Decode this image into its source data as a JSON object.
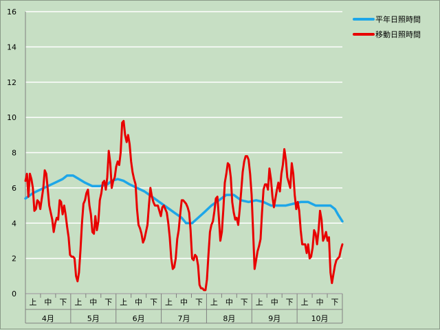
{
  "chart_data": {
    "type": "line",
    "title": "",
    "xlabel": "",
    "ylabel": "",
    "ylim": [
      0,
      16
    ],
    "yticks": [
      0,
      2,
      4,
      6,
      8,
      10,
      12,
      14,
      16
    ],
    "grid": true,
    "legend_position": "top-right",
    "months": [
      "4月",
      "5月",
      "6月",
      "7月",
      "8月",
      "9月",
      "10月"
    ],
    "decade_labels": [
      "上",
      "中",
      "下"
    ],
    "x_unit": "day index (0 = Apr 1, 213 = Oct 31)",
    "series": [
      {
        "name": "平年日照時間",
        "color": "#1ea6e8",
        "points": [
          [
            0,
            5.4
          ],
          [
            5,
            5.7
          ],
          [
            10,
            5.9
          ],
          [
            15,
            6.1
          ],
          [
            20,
            6.3
          ],
          [
            25,
            6.5
          ],
          [
            28,
            6.7
          ],
          [
            32,
            6.7
          ],
          [
            36,
            6.5
          ],
          [
            40,
            6.3
          ],
          [
            45,
            6.1
          ],
          [
            50,
            6.1
          ],
          [
            55,
            6.2
          ],
          [
            58,
            6.4
          ],
          [
            62,
            6.5
          ],
          [
            66,
            6.4
          ],
          [
            70,
            6.2
          ],
          [
            75,
            6.0
          ],
          [
            80,
            5.8
          ],
          [
            85,
            5.5
          ],
          [
            90,
            5.2
          ],
          [
            95,
            4.9
          ],
          [
            100,
            4.6
          ],
          [
            105,
            4.3
          ],
          [
            108,
            4.0
          ],
          [
            112,
            4.0
          ],
          [
            116,
            4.3
          ],
          [
            120,
            4.6
          ],
          [
            125,
            5.0
          ],
          [
            130,
            5.3
          ],
          [
            135,
            5.6
          ],
          [
            140,
            5.6
          ],
          [
            145,
            5.3
          ],
          [
            150,
            5.2
          ],
          [
            155,
            5.3
          ],
          [
            160,
            5.2
          ],
          [
            165,
            5.0
          ],
          [
            170,
            5.0
          ],
          [
            175,
            5.0
          ],
          [
            180,
            5.1
          ],
          [
            185,
            5.2
          ],
          [
            190,
            5.2
          ],
          [
            195,
            5.0
          ],
          [
            200,
            5.0
          ],
          [
            205,
            5.0
          ],
          [
            208,
            4.8
          ],
          [
            210,
            4.5
          ],
          [
            213,
            4.1
          ]
        ]
      },
      {
        "name": "移動日照時間",
        "color": "#e80000",
        "points": [
          [
            0,
            6.4
          ],
          [
            1,
            6.8
          ],
          [
            2,
            5.5
          ],
          [
            3,
            6.8
          ],
          [
            4,
            6.5
          ],
          [
            5,
            6.0
          ],
          [
            6,
            4.7
          ],
          [
            7,
            4.8
          ],
          [
            8,
            5.3
          ],
          [
            9,
            5.2
          ],
          [
            10,
            4.8
          ],
          [
            11,
            5.4
          ],
          [
            12,
            6.0
          ],
          [
            13,
            7.0
          ],
          [
            14,
            6.8
          ],
          [
            15,
            5.9
          ],
          [
            16,
            5.0
          ],
          [
            17,
            4.6
          ],
          [
            18,
            4.2
          ],
          [
            19,
            3.5
          ],
          [
            20,
            4.0
          ],
          [
            21,
            4.3
          ],
          [
            22,
            4.2
          ],
          [
            23,
            5.3
          ],
          [
            24,
            5.2
          ],
          [
            25,
            4.5
          ],
          [
            26,
            5.0
          ],
          [
            27,
            4.5
          ],
          [
            28,
            3.8
          ],
          [
            29,
            3.2
          ],
          [
            30,
            2.2
          ],
          [
            31,
            2.1
          ],
          [
            32,
            2.1
          ],
          [
            33,
            2.0
          ],
          [
            34,
            1.0
          ],
          [
            35,
            0.7
          ],
          [
            36,
            1.2
          ],
          [
            37,
            2.5
          ],
          [
            38,
            4.0
          ],
          [
            39,
            5.1
          ],
          [
            40,
            5.3
          ],
          [
            41,
            5.7
          ],
          [
            42,
            5.9
          ],
          [
            43,
            5.0
          ],
          [
            44,
            4.5
          ],
          [
            45,
            3.5
          ],
          [
            46,
            3.4
          ],
          [
            47,
            4.4
          ],
          [
            48,
            3.6
          ],
          [
            49,
            4.1
          ],
          [
            50,
            5.3
          ],
          [
            51,
            5.7
          ],
          [
            52,
            6.3
          ],
          [
            53,
            6.4
          ],
          [
            54,
            5.9
          ],
          [
            55,
            6.6
          ],
          [
            56,
            8.1
          ],
          [
            57,
            7.4
          ],
          [
            58,
            6.0
          ],
          [
            59,
            6.4
          ],
          [
            60,
            6.6
          ],
          [
            61,
            7.2
          ],
          [
            62,
            7.5
          ],
          [
            63,
            7.3
          ],
          [
            64,
            8.0
          ],
          [
            65,
            9.7
          ],
          [
            66,
            9.8
          ],
          [
            67,
            9.0
          ],
          [
            68,
            8.6
          ],
          [
            69,
            9.0
          ],
          [
            70,
            8.5
          ],
          [
            71,
            7.5
          ],
          [
            72,
            6.9
          ],
          [
            73,
            6.5
          ],
          [
            74,
            6.2
          ],
          [
            75,
            4.8
          ],
          [
            76,
            3.9
          ],
          [
            77,
            3.7
          ],
          [
            78,
            3.4
          ],
          [
            79,
            2.9
          ],
          [
            80,
            3.1
          ],
          [
            81,
            3.5
          ],
          [
            82,
            3.9
          ],
          [
            83,
            5.0
          ],
          [
            84,
            6.0
          ],
          [
            85,
            5.5
          ],
          [
            86,
            5.2
          ],
          [
            87,
            5.0
          ],
          [
            88,
            5.0
          ],
          [
            89,
            5.0
          ],
          [
            90,
            4.7
          ],
          [
            91,
            4.4
          ],
          [
            92,
            4.9
          ],
          [
            93,
            5.0
          ],
          [
            94,
            4.8
          ],
          [
            95,
            4.6
          ],
          [
            96,
            4.0
          ],
          [
            97,
            3.2
          ],
          [
            98,
            2.0
          ],
          [
            99,
            1.4
          ],
          [
            100,
            1.5
          ],
          [
            101,
            2.0
          ],
          [
            102,
            3.1
          ],
          [
            103,
            3.6
          ],
          [
            104,
            4.5
          ],
          [
            105,
            5.3
          ],
          [
            106,
            5.3
          ],
          [
            107,
            5.2
          ],
          [
            108,
            5.1
          ],
          [
            109,
            4.9
          ],
          [
            110,
            4.6
          ],
          [
            111,
            3.6
          ],
          [
            112,
            2.0
          ],
          [
            113,
            1.9
          ],
          [
            114,
            2.2
          ],
          [
            115,
            2.1
          ],
          [
            116,
            1.6
          ],
          [
            117,
            0.5
          ],
          [
            118,
            0.3
          ],
          [
            119,
            0.3
          ],
          [
            120,
            0.2
          ],
          [
            121,
            0.2
          ],
          [
            122,
            0.8
          ],
          [
            123,
            2.2
          ],
          [
            124,
            3.5
          ],
          [
            125,
            3.9
          ],
          [
            126,
            4.1
          ],
          [
            127,
            4.7
          ],
          [
            128,
            5.4
          ],
          [
            129,
            5.5
          ],
          [
            130,
            4.3
          ],
          [
            131,
            3.0
          ],
          [
            132,
            3.5
          ],
          [
            133,
            4.8
          ],
          [
            134,
            6.3
          ],
          [
            135,
            6.8
          ],
          [
            136,
            7.4
          ],
          [
            137,
            7.3
          ],
          [
            138,
            6.6
          ],
          [
            139,
            5.2
          ],
          [
            140,
            4.6
          ],
          [
            141,
            4.2
          ],
          [
            142,
            4.3
          ],
          [
            143,
            3.9
          ],
          [
            144,
            4.8
          ],
          [
            145,
            5.8
          ],
          [
            146,
            6.9
          ],
          [
            147,
            7.5
          ],
          [
            148,
            7.8
          ],
          [
            149,
            7.8
          ],
          [
            150,
            7.6
          ],
          [
            151,
            6.8
          ],
          [
            152,
            5.6
          ],
          [
            153,
            3.6
          ],
          [
            154,
            1.4
          ],
          [
            155,
            1.9
          ],
          [
            156,
            2.4
          ],
          [
            157,
            2.7
          ],
          [
            158,
            3.1
          ],
          [
            159,
            4.6
          ],
          [
            160,
            5.9
          ],
          [
            161,
            6.2
          ],
          [
            162,
            6.2
          ],
          [
            163,
            5.9
          ],
          [
            164,
            7.1
          ],
          [
            165,
            6.5
          ],
          [
            166,
            5.5
          ],
          [
            167,
            4.9
          ],
          [
            168,
            5.4
          ],
          [
            169,
            5.9
          ],
          [
            170,
            6.3
          ],
          [
            171,
            5.8
          ],
          [
            172,
            6.8
          ],
          [
            173,
            7.3
          ],
          [
            174,
            8.2
          ],
          [
            175,
            7.6
          ],
          [
            176,
            6.6
          ],
          [
            177,
            6.3
          ],
          [
            178,
            6.0
          ],
          [
            179,
            7.4
          ],
          [
            180,
            6.8
          ],
          [
            181,
            5.6
          ],
          [
            182,
            4.8
          ],
          [
            183,
            5.2
          ],
          [
            184,
            4.7
          ],
          [
            185,
            3.6
          ],
          [
            186,
            2.8
          ],
          [
            187,
            2.8
          ],
          [
            188,
            2.8
          ],
          [
            189,
            2.3
          ],
          [
            190,
            2.8
          ],
          [
            191,
            2.0
          ],
          [
            192,
            2.1
          ],
          [
            193,
            2.6
          ],
          [
            194,
            3.6
          ],
          [
            195,
            3.4
          ],
          [
            196,
            2.8
          ],
          [
            197,
            3.6
          ],
          [
            198,
            4.7
          ],
          [
            199,
            4.2
          ],
          [
            200,
            3.0
          ],
          [
            201,
            3.2
          ],
          [
            202,
            3.5
          ],
          [
            203,
            3.0
          ],
          [
            204,
            3.2
          ],
          [
            205,
            1.2
          ],
          [
            206,
            0.6
          ],
          [
            207,
            1.1
          ],
          [
            208,
            1.6
          ],
          [
            209,
            1.9
          ],
          [
            210,
            2.0
          ],
          [
            211,
            2.1
          ],
          [
            212,
            2.5
          ],
          [
            213,
            2.8
          ]
        ]
      }
    ]
  }
}
